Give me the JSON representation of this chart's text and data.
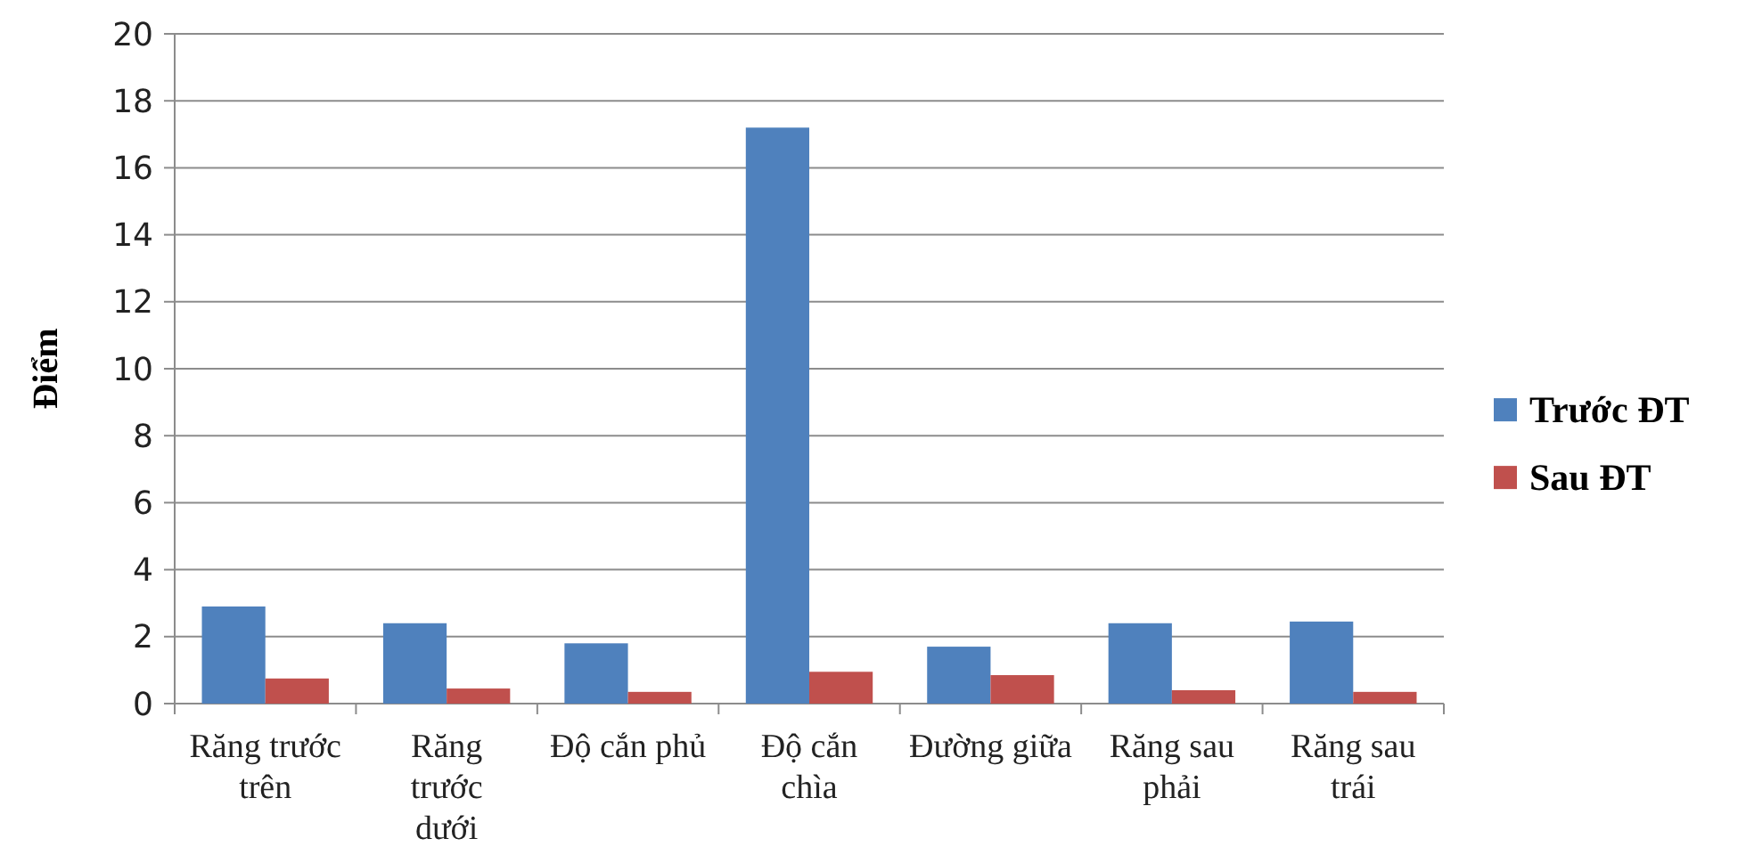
{
  "chart_data": {
    "type": "bar",
    "ylabel": "Điểm",
    "categories": [
      "Răng trước trên",
      "Răng trước dưới",
      "Độ cắn phủ",
      "Độ cắn chìa",
      "Đường giữa",
      "Răng sau phải",
      "Răng sau trái"
    ],
    "series": [
      {
        "name": "Trước ĐT",
        "color": "#4f81bd",
        "values": [
          2.9,
          2.4,
          1.8,
          17.2,
          1.7,
          2.4,
          2.45
        ]
      },
      {
        "name": "Sau ĐT",
        "color": "#c0504d",
        "values": [
          0.75,
          0.45,
          0.35,
          0.95,
          0.85,
          0.4,
          0.35
        ]
      }
    ],
    "ylim": [
      0,
      20
    ],
    "yticks": [
      0,
      2,
      4,
      6,
      8,
      10,
      12,
      14,
      16,
      18,
      20
    ],
    "grid": "y",
    "legend": "right"
  }
}
